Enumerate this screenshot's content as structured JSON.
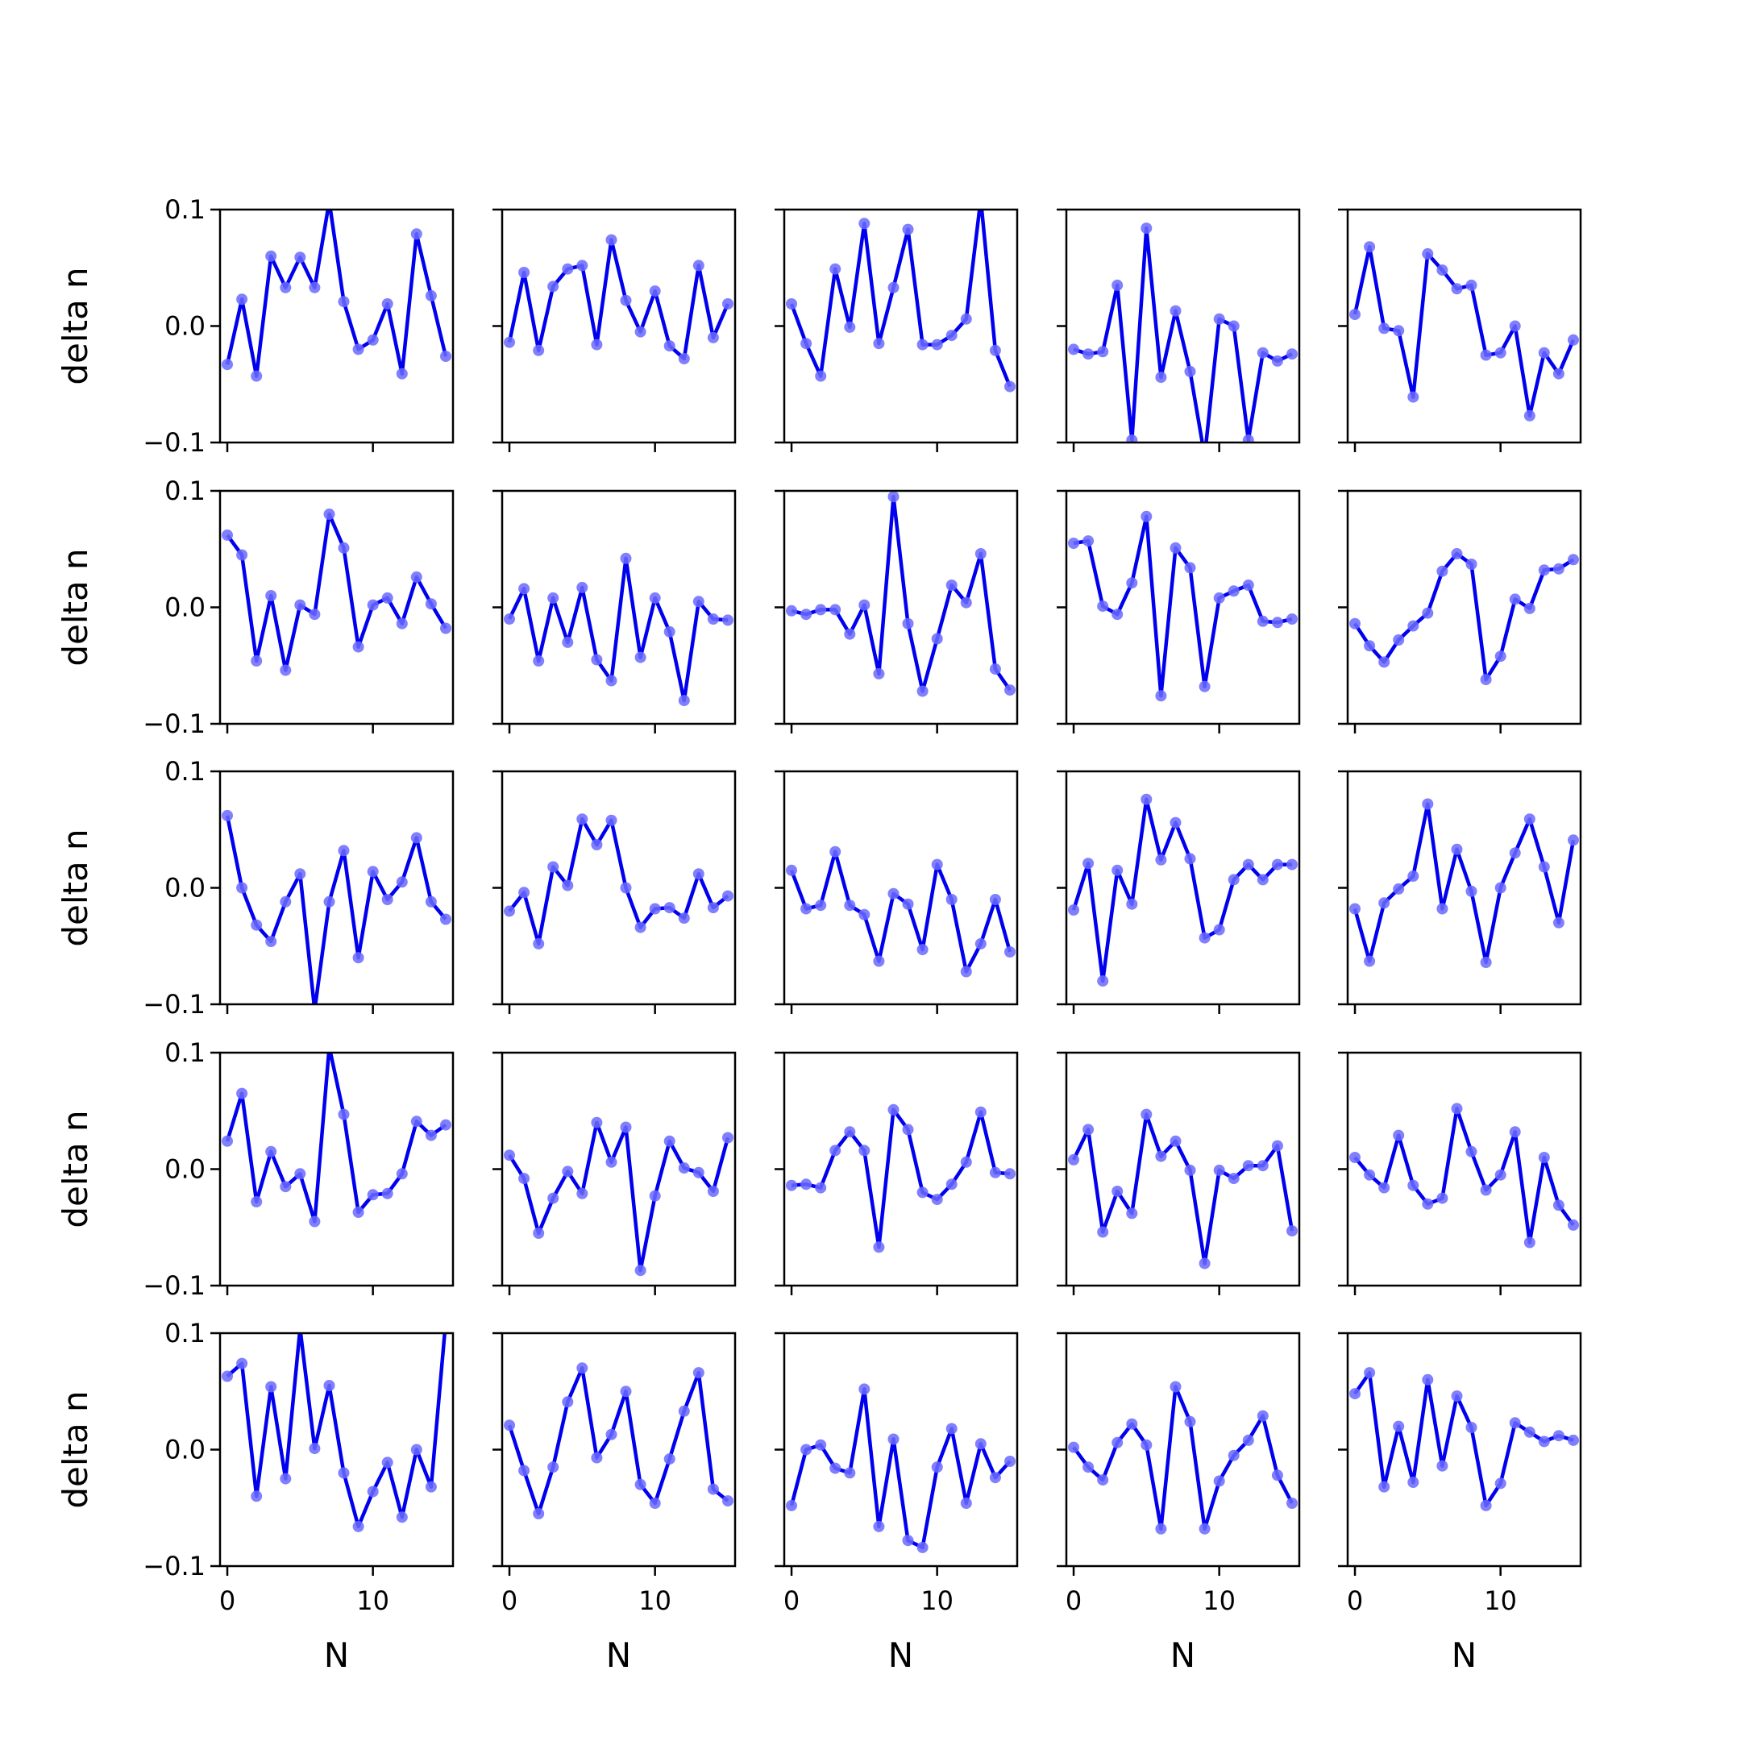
{
  "figure": {
    "background": "#ffffff"
  },
  "style": {
    "line_color": "#0000ee",
    "marker_color": "#6a6aff",
    "axis_color": "#000000"
  },
  "chart_data": {
    "type": "line",
    "layout": "5x5 grid of small multiples, shared axes",
    "x": [
      0,
      1,
      2,
      3,
      4,
      5,
      6,
      7,
      8,
      9,
      10,
      11,
      12,
      13,
      14,
      15
    ],
    "xlim": [
      -0.5,
      15.5
    ],
    "ylim": [
      -0.1,
      0.1
    ],
    "xlabel": "N",
    "ylabel": "delta n",
    "xticks": [
      0,
      10
    ],
    "xtick_labels": [
      "0",
      "10"
    ],
    "yticks": [
      0.1,
      0.0,
      -0.1
    ],
    "ytick_labels": [
      "0.1",
      "0.0",
      "−0.1"
    ],
    "grid": false,
    "legend": false,
    "panels": [
      [
        -0.033,
        0.023,
        -0.043,
        0.06,
        0.033,
        0.059,
        0.033,
        0.107,
        0.021,
        -0.02,
        -0.012,
        0.019,
        -0.041,
        0.079,
        0.026,
        -0.026
      ],
      [
        -0.014,
        0.046,
        -0.021,
        0.034,
        0.049,
        0.052,
        -0.016,
        0.074,
        0.022,
        -0.005,
        0.03,
        -0.017,
        -0.028,
        0.052,
        -0.01,
        0.019
      ],
      [
        0.019,
        -0.015,
        -0.043,
        0.049,
        -0.001,
        0.088,
        -0.015,
        0.033,
        0.083,
        -0.016,
        -0.016,
        -0.008,
        0.006,
        0.109,
        -0.021,
        -0.052
      ],
      [
        -0.02,
        -0.024,
        -0.022,
        0.035,
        -0.098,
        0.084,
        -0.044,
        0.013,
        -0.039,
        -0.112,
        0.006,
        0.0,
        -0.098,
        -0.023,
        -0.03,
        -0.024
      ],
      [
        0.01,
        0.068,
        -0.002,
        -0.004,
        -0.061,
        0.062,
        0.048,
        0.032,
        0.035,
        -0.025,
        -0.023,
        0.0,
        -0.077,
        -0.023,
        -0.041,
        -0.012
      ],
      [
        0.062,
        0.045,
        -0.046,
        0.01,
        -0.054,
        0.002,
        -0.006,
        0.08,
        0.051,
        -0.034,
        0.002,
        0.008,
        -0.014,
        0.026,
        0.003,
        -0.018
      ],
      [
        -0.01,
        0.016,
        -0.046,
        0.008,
        -0.03,
        0.017,
        -0.045,
        -0.063,
        0.042,
        -0.043,
        0.008,
        -0.021,
        -0.08,
        0.005,
        -0.01,
        -0.011
      ],
      [
        -0.003,
        -0.006,
        -0.002,
        -0.002,
        -0.023,
        0.002,
        -0.057,
        0.095,
        -0.014,
        -0.072,
        -0.027,
        0.019,
        0.004,
        0.046,
        -0.053,
        -0.071
      ],
      [
        0.055,
        0.057,
        0.001,
        -0.006,
        0.021,
        0.078,
        -0.076,
        0.051,
        0.034,
        -0.068,
        0.008,
        0.014,
        0.019,
        -0.012,
        -0.013,
        -0.01
      ],
      [
        -0.014,
        -0.033,
        -0.047,
        -0.028,
        -0.016,
        -0.005,
        0.031,
        0.046,
        0.037,
        -0.062,
        -0.042,
        0.007,
        -0.001,
        0.032,
        0.033,
        0.041
      ],
      [
        0.062,
        0.0,
        -0.032,
        -0.046,
        -0.012,
        0.012,
        -0.105,
        -0.012,
        0.032,
        -0.06,
        0.014,
        -0.01,
        0.005,
        0.043,
        -0.012,
        -0.027
      ],
      [
        -0.02,
        -0.004,
        -0.048,
        0.018,
        0.002,
        0.059,
        0.037,
        0.058,
        0.0,
        -0.034,
        -0.018,
        -0.017,
        -0.026,
        0.012,
        -0.017,
        -0.007
      ],
      [
        0.015,
        -0.018,
        -0.015,
        0.031,
        -0.015,
        -0.023,
        -0.063,
        -0.005,
        -0.014,
        -0.053,
        0.02,
        -0.01,
        -0.072,
        -0.048,
        -0.01,
        -0.055
      ],
      [
        -0.019,
        0.021,
        -0.08,
        0.015,
        -0.014,
        0.076,
        0.024,
        0.056,
        0.025,
        -0.043,
        -0.036,
        0.007,
        0.02,
        0.007,
        0.02,
        0.02
      ],
      [
        -0.018,
        -0.063,
        -0.013,
        -0.001,
        0.01,
        0.072,
        -0.018,
        0.033,
        -0.003,
        -0.064,
        0.0,
        0.03,
        0.059,
        0.018,
        -0.03,
        0.041
      ],
      [
        0.024,
        0.065,
        -0.028,
        0.015,
        -0.015,
        -0.004,
        -0.045,
        0.105,
        0.047,
        -0.037,
        -0.022,
        -0.021,
        -0.004,
        0.041,
        0.029,
        0.038
      ],
      [
        0.012,
        -0.008,
        -0.055,
        -0.025,
        -0.002,
        -0.021,
        0.04,
        0.006,
        0.036,
        -0.087,
        -0.023,
        0.024,
        0.001,
        -0.003,
        -0.019,
        0.027
      ],
      [
        -0.014,
        -0.013,
        -0.016,
        0.016,
        0.032,
        0.016,
        -0.067,
        0.051,
        0.034,
        -0.02,
        -0.026,
        -0.013,
        0.006,
        0.049,
        -0.003,
        -0.004
      ],
      [
        0.008,
        0.034,
        -0.054,
        -0.019,
        -0.038,
        0.047,
        0.011,
        0.024,
        -0.001,
        -0.081,
        -0.001,
        -0.008,
        0.003,
        0.003,
        0.02,
        -0.053
      ],
      [
        0.01,
        -0.005,
        -0.016,
        0.029,
        -0.014,
        -0.03,
        -0.025,
        0.052,
        0.015,
        -0.018,
        -0.005,
        0.032,
        -0.063,
        0.01,
        -0.031,
        -0.048
      ],
      [
        0.063,
        0.074,
        -0.04,
        0.054,
        -0.025,
        0.104,
        0.001,
        0.055,
        -0.02,
        -0.066,
        -0.036,
        -0.011,
        -0.058,
        0.0,
        -0.032,
        0.11
      ],
      [
        0.021,
        -0.018,
        -0.055,
        -0.015,
        0.041,
        0.07,
        -0.007,
        0.013,
        0.05,
        -0.03,
        -0.046,
        -0.008,
        0.033,
        0.066,
        -0.034,
        -0.044
      ],
      [
        -0.048,
        0.0,
        0.004,
        -0.016,
        -0.02,
        0.052,
        -0.066,
        0.009,
        -0.078,
        -0.084,
        -0.015,
        0.018,
        -0.046,
        0.005,
        -0.024,
        -0.01
      ],
      [
        0.002,
        -0.015,
        -0.026,
        0.006,
        0.022,
        0.004,
        -0.068,
        0.054,
        0.024,
        -0.068,
        -0.027,
        -0.005,
        0.008,
        0.029,
        -0.022,
        -0.046
      ],
      [
        0.048,
        0.066,
        -0.032,
        0.02,
        -0.028,
        0.06,
        -0.014,
        0.046,
        0.019,
        -0.048,
        -0.029,
        0.023,
        0.015,
        0.007,
        0.012,
        0.008
      ]
    ]
  }
}
